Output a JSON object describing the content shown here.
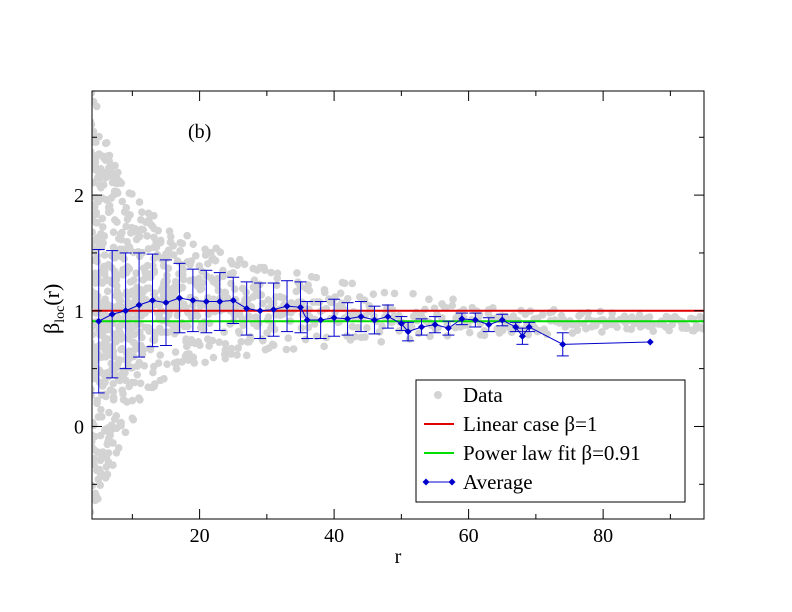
{
  "chart_data": {
    "type": "scatter",
    "panel_label": "(b)",
    "xlabel": "r",
    "ylabel_main": "β",
    "ylabel_sub": "loc",
    "ylabel_tail": "(r)",
    "xlim": [
      4,
      95
    ],
    "ylim": [
      -0.8,
      2.9
    ],
    "xticks": [
      {
        "value": 20,
        "label": "20"
      },
      {
        "value": 40,
        "label": "40"
      },
      {
        "value": 60,
        "label": "60"
      },
      {
        "value": 80,
        "label": "80"
      }
    ],
    "yticks": [
      {
        "value": 0,
        "label": "0"
      },
      {
        "value": 1,
        "label": "1"
      },
      {
        "value": 2,
        "label": "2"
      }
    ],
    "legend": [
      {
        "key": "data",
        "label": "Data",
        "color": "#d3d3d3",
        "style": "dot"
      },
      {
        "key": "linear",
        "label": "Linear case β=1",
        "color": "#e00000",
        "style": "line"
      },
      {
        "key": "power",
        "label": "Power law fit β=0.91",
        "color": "#00dd00",
        "style": "line"
      },
      {
        "key": "average",
        "label": "Average",
        "color": "#0000cc",
        "style": "line-diamond"
      }
    ],
    "reference_lines": [
      {
        "name": "Linear case β=1",
        "y": 1.0,
        "color": "#e00000"
      },
      {
        "name": "Power law fit β=0.91",
        "y": 0.91,
        "color": "#00dd00"
      }
    ],
    "data_envelope": {
      "name": "Data",
      "color": "#d3d3d3",
      "x": [
        4,
        6,
        8,
        10,
        12,
        15,
        18,
        22,
        26,
        30,
        35,
        40,
        45,
        50,
        55,
        60,
        65,
        70,
        75,
        80,
        85,
        90,
        95
      ],
      "upper": [
        2.9,
        2.5,
        2.25,
        2.05,
        1.9,
        1.75,
        1.65,
        1.55,
        1.47,
        1.4,
        1.34,
        1.28,
        1.22,
        1.17,
        1.13,
        1.1,
        1.07,
        1.04,
        1.02,
        1.0,
        0.98,
        0.96,
        0.95
      ],
      "lower": [
        -0.8,
        -0.5,
        -0.2,
        0.05,
        0.25,
        0.4,
        0.5,
        0.55,
        0.6,
        0.64,
        0.67,
        0.7,
        0.72,
        0.74,
        0.76,
        0.77,
        0.78,
        0.79,
        0.8,
        0.8,
        0.81,
        0.82,
        0.82
      ]
    },
    "series": [
      {
        "name": "Average",
        "color": "#0000cc",
        "x": [
          5,
          7,
          9,
          11,
          13,
          15,
          17,
          19,
          21,
          23,
          25,
          27,
          29,
          31,
          33,
          35,
          36,
          38,
          40,
          42,
          44,
          46,
          48,
          50,
          51,
          53,
          55,
          57,
          59,
          61,
          63,
          65,
          67,
          68,
          69,
          74,
          87
        ],
        "y": [
          0.91,
          0.97,
          1.0,
          1.05,
          1.09,
          1.07,
          1.11,
          1.09,
          1.08,
          1.08,
          1.09,
          1.02,
          1.0,
          1.01,
          1.04,
          1.03,
          0.92,
          0.92,
          0.94,
          0.93,
          0.95,
          0.92,
          0.95,
          0.89,
          0.82,
          0.86,
          0.88,
          0.85,
          0.93,
          0.92,
          0.88,
          0.92,
          0.86,
          0.78,
          0.86,
          0.71,
          0.73
        ],
        "err": [
          0.62,
          0.55,
          0.5,
          0.45,
          0.4,
          0.37,
          0.3,
          0.27,
          0.27,
          0.25,
          0.2,
          0.23,
          0.24,
          0.23,
          0.22,
          0.22,
          0.16,
          0.16,
          0.16,
          0.14,
          0.13,
          0.12,
          0.1,
          0.06,
          0.08,
          0.07,
          0.07,
          0.06,
          0.05,
          0.06,
          0.06,
          0.05,
          0.04,
          0.07,
          0.04,
          0.1,
          0.0
        ]
      }
    ]
  }
}
